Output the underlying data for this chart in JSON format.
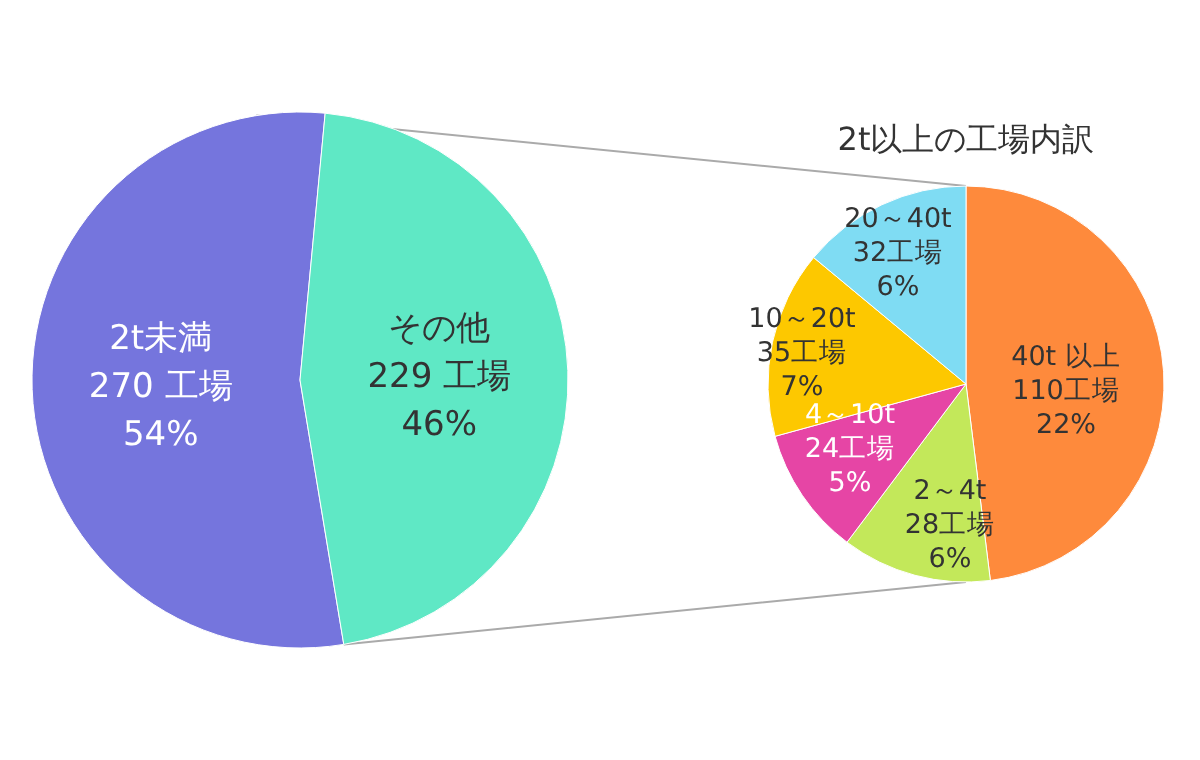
{
  "chart_data": [
    {
      "type": "pie",
      "categories": [
        "2t未満",
        "その他"
      ],
      "values": [
        270,
        229
      ],
      "colors": [
        "#7575dd",
        "#5fe8c5"
      ],
      "value_labels": [
        "270 工場\n54%",
        "229 工場\n46%"
      ]
    },
    {
      "type": "pie",
      "title": "2t以上の工場内訳",
      "categories": [
        "40t 以上",
        "2～4t",
        "4～10t",
        "10～20t",
        "20～40t"
      ],
      "values": [
        110,
        28,
        24,
        35,
        32
      ],
      "colors": [
        "#fe8a3c",
        "#c3e85a",
        "#e645a5",
        "#fdc800",
        "#7fdcf3"
      ],
      "value_labels": [
        "110工場\n22%",
        "28工場\n6%",
        "24工場\n5%",
        "35工場\n7%",
        "32工場\n6%"
      ]
    }
  ]
}
